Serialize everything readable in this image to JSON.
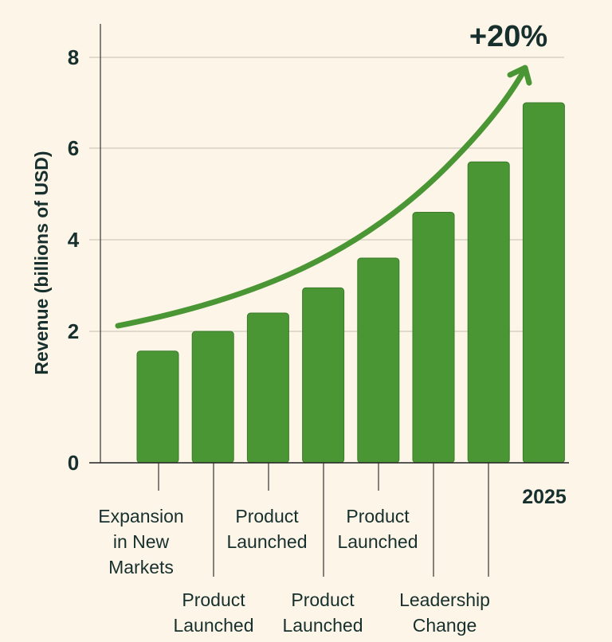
{
  "chart_data": {
    "type": "bar",
    "title": "",
    "xlabel": "",
    "ylabel": "Revenue (billions of USD)",
    "ylim": [
      0,
      8
    ],
    "yticks": [
      0,
      2,
      4,
      6,
      8
    ],
    "grid": true,
    "bar_color": "#4a9634",
    "categories": [
      "Expansion in New Markets",
      "Product Launched",
      "Product Launched",
      "Product Launched",
      "Product Launched",
      "Leadership Change",
      "",
      "2025"
    ],
    "values": [
      1.7,
      2.0,
      2.4,
      2.95,
      3.6,
      4.6,
      5.7,
      7.0
    ],
    "category_label_lines": [
      [
        "Expansion",
        "in New",
        "Markets"
      ],
      [
        "Product",
        "Launched"
      ],
      [
        "Product",
        "Launched"
      ],
      [
        "Product",
        "Launched"
      ],
      [
        "Product",
        "Launched"
      ],
      [
        "Leadership",
        "Change"
      ],
      [],
      [
        "2025"
      ]
    ],
    "annotations": [
      {
        "text": "+20%",
        "type": "trend-arrow",
        "color": "#4a9634"
      }
    ]
  }
}
